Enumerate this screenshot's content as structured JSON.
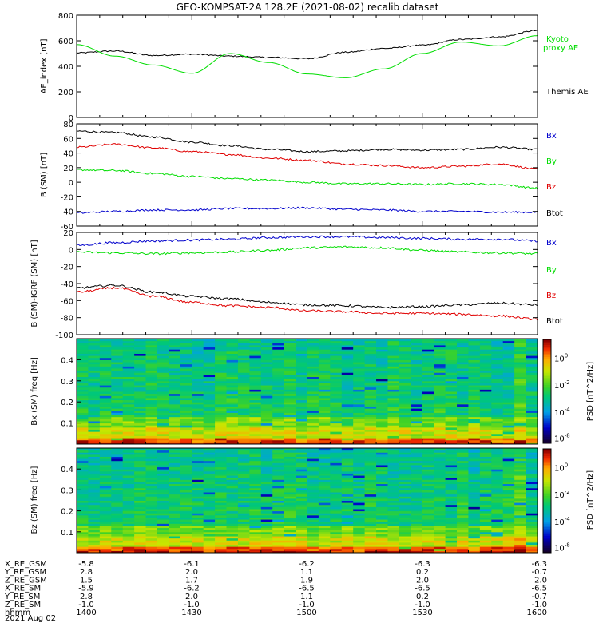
{
  "title": "GEO-KOMPSAT-2A 128.2E (2021-08-02) recalib dataset",
  "colors": {
    "black": "#000000",
    "green": "#00dd00",
    "red": "#e00000",
    "blue": "#0000cc"
  },
  "chart_data": [
    {
      "type": "line",
      "panel": "ae",
      "ylabel": "AE_index [nT]",
      "ylim": [
        0,
        800
      ],
      "yticks": [
        "0",
        "200",
        "400",
        "600",
        "800"
      ],
      "series": [
        {
          "name": "Themis AE",
          "color": "black",
          "x": [
            "14:00",
            "14:10",
            "14:20",
            "14:30",
            "14:40",
            "14:50",
            "15:00",
            "15:10",
            "15:20",
            "15:30",
            "15:40",
            "15:50",
            "16:00"
          ],
          "values": [
            505,
            520,
            485,
            495,
            480,
            470,
            460,
            510,
            540,
            565,
            610,
            630,
            680
          ]
        },
        {
          "name": "Kyoto proxy AE",
          "color": "green",
          "x": [
            "14:00",
            "14:10",
            "14:20",
            "14:30",
            "14:40",
            "14:50",
            "15:00",
            "15:10",
            "15:20",
            "15:30",
            "15:40",
            "15:50",
            "16:00"
          ],
          "values": [
            570,
            480,
            410,
            345,
            500,
            430,
            340,
            310,
            380,
            500,
            590,
            560,
            640
          ]
        }
      ]
    },
    {
      "type": "line",
      "panel": "b",
      "ylabel": "B (SM) [nT]",
      "ylim": [
        -60,
        80
      ],
      "yticks": [
        "-60",
        "-40",
        "-20",
        "0",
        "20",
        "40",
        "60",
        "80"
      ],
      "series": [
        {
          "name": "Btot",
          "color": "black",
          "values": [
            70,
            68,
            62,
            55,
            50,
            45,
            42,
            43,
            45,
            44,
            45,
            48,
            45
          ]
        },
        {
          "name": "Bz",
          "color": "red",
          "values": [
            48,
            52,
            47,
            42,
            38,
            33,
            30,
            25,
            23,
            20,
            22,
            25,
            18
          ]
        },
        {
          "name": "By",
          "color": "green",
          "values": [
            17,
            16,
            12,
            8,
            5,
            3,
            0,
            -2,
            -2,
            -3,
            -2,
            -3,
            -8
          ]
        },
        {
          "name": "Bx",
          "color": "blue",
          "values": [
            -42,
            -40,
            -38,
            -38,
            -36,
            -36,
            -35,
            -37,
            -38,
            -40,
            -40,
            -41,
            -41
          ]
        }
      ],
      "legend": [
        "Bx",
        "By",
        "Bz",
        "Btot"
      ]
    },
    {
      "type": "line",
      "panel": "db",
      "ylabel": "B (SM)-IGRF (SM) [nT]",
      "ylim": [
        -100,
        20
      ],
      "yticks": [
        "-100",
        "-80",
        "-60",
        "-40",
        "-20",
        "0",
        "20"
      ],
      "series": [
        {
          "name": "Bx",
          "color": "blue",
          "values": [
            5,
            8,
            10,
            11,
            12,
            14,
            15,
            15,
            14,
            13,
            12,
            12,
            10
          ]
        },
        {
          "name": "By",
          "color": "green",
          "values": [
            -3,
            -4,
            -5,
            -4,
            -3,
            -1,
            2,
            3,
            2,
            -1,
            -3,
            -4,
            -5
          ]
        },
        {
          "name": "Btot",
          "color": "black",
          "values": [
            -45,
            -42,
            -50,
            -55,
            -58,
            -62,
            -65,
            -66,
            -68,
            -67,
            -65,
            -63,
            -65
          ]
        },
        {
          "name": "Bz",
          "color": "red",
          "values": [
            -50,
            -45,
            -55,
            -62,
            -66,
            -68,
            -72,
            -73,
            -75,
            -75,
            -76,
            -78,
            -82
          ]
        }
      ],
      "legend": [
        "Bx",
        "By",
        "Bz",
        "Btot"
      ]
    },
    {
      "type": "heatmap",
      "panel": "bx_spec",
      "ylabel": "Bx (SM) freq [Hz]",
      "ylim": [
        0,
        0.5
      ],
      "yticks": [
        "0.1",
        "0.2",
        "0.3",
        "0.4"
      ],
      "colorbar_label": "PSD [nT^2/Hz]",
      "colorbar_ticks": [
        "10^0",
        "10^-2",
        "10^-4",
        "10^-8"
      ]
    },
    {
      "type": "heatmap",
      "panel": "bz_spec",
      "ylabel": "Bz (SM) freq [Hz]",
      "ylim": [
        0,
        0.5
      ],
      "yticks": [
        "0.1",
        "0.2",
        "0.3",
        "0.4"
      ],
      "colorbar_label": "PSD [nT^2/Hz]",
      "colorbar_ticks": [
        "10^0",
        "10^-2",
        "10^-4",
        "10^-8"
      ]
    }
  ],
  "legend_ae": {
    "kyoto_line1": "Kyoto",
    "kyoto_line2": "proxy AE",
    "themis": "Themis AE"
  },
  "legend_b": {
    "bx": "Bx",
    "by": "By",
    "bz": "Bz",
    "btot": "Btot"
  },
  "legend_db": {
    "bx": "Bx",
    "by": "By",
    "bz": "Bz",
    "btot": "Btot"
  },
  "footer": {
    "rows": [
      {
        "label": "X_RE_GSM",
        "values": [
          "-5.8",
          "-6.1",
          "-6.2",
          "-6.3",
          "-6.3"
        ]
      },
      {
        "label": "Y_RE_GSM",
        "values": [
          "2.8",
          "2.0",
          "1.1",
          "0.2",
          "-0.7"
        ]
      },
      {
        "label": "Z_RE_GSM",
        "values": [
          "1.5",
          "1.7",
          "1.9",
          "2.0",
          "2.0"
        ]
      },
      {
        "label": "X_RE_SM",
        "values": [
          "-5.9",
          "-6.2",
          "-6.5",
          "-6.5",
          "-6.5"
        ]
      },
      {
        "label": "Y_RE_SM",
        "values": [
          "2.8",
          "2.0",
          "1.1",
          "0.2",
          "-0.7"
        ]
      },
      {
        "label": "Z_RE_SM",
        "values": [
          "-1.0",
          "-1.0",
          "-1.0",
          "-1.0",
          "-1.0"
        ]
      },
      {
        "label": "hhmm",
        "values": [
          "1400",
          "1430",
          "1500",
          "1530",
          "1600"
        ]
      }
    ],
    "date": "2021 Aug 02"
  }
}
